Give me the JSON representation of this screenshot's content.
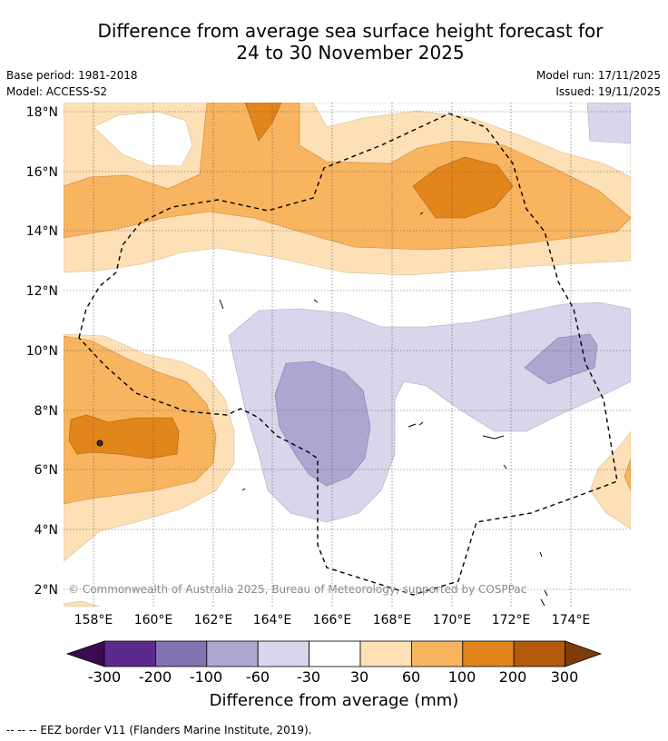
{
  "title": {
    "line1": "Difference from average sea surface height forecast for",
    "line2": "24 to 30 November 2025"
  },
  "meta": {
    "base_period": "Base period: 1981-2018",
    "model": "Model: ACCESS-S2",
    "model_run": "Model run: 17/11/2025",
    "issued": "Issued: 19/11/2025"
  },
  "map": {
    "lon_labels": [
      "158°E",
      "160°E",
      "162°E",
      "164°E",
      "166°E",
      "168°E",
      "170°E",
      "172°E",
      "174°E"
    ],
    "lat_labels": [
      "18°N",
      "16°N",
      "14°N",
      "12°N",
      "10°N",
      "8°N",
      "6°N",
      "4°N",
      "2°N"
    ],
    "copyright": "© Commonwealth of Australia 2025, Bureau of Meteorology, supported by COSPPac"
  },
  "colorbar": {
    "colors": [
      "#3b0a52",
      "#5c2a8e",
      "#8172b1",
      "#ada6d1",
      "#d7d6ea",
      "#ffffff",
      "#fde0b6",
      "#f9b460",
      "#e2851b",
      "#b45b0b",
      "#7f3b08"
    ],
    "ticks": [
      "-300",
      "-200",
      "-100",
      "-60",
      "-30",
      "30",
      "60",
      "100",
      "200",
      "300"
    ],
    "label": "Difference from average (mm)"
  },
  "footnote": "--  --  -- EEZ border V11 (Flanders Marine Institute, 2019)."
}
